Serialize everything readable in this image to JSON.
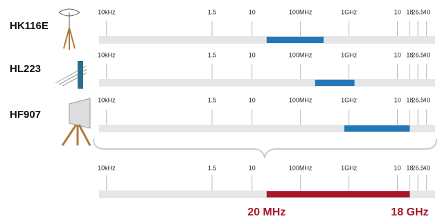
{
  "chart_data": {
    "type": "range",
    "xscale": "log",
    "xlim": [
      0.007,
      60000
    ],
    "xticks": [
      {
        "value": 0.01,
        "label": "10kHz"
      },
      {
        "value": 1.5,
        "label": "1.5"
      },
      {
        "value": 10,
        "label": "10"
      },
      {
        "value": 100,
        "label": "100MHz"
      },
      {
        "value": 1000,
        "label": "1GHz"
      },
      {
        "value": 10000,
        "label": "10"
      },
      {
        "value": 18000,
        "label": "18"
      },
      {
        "value": 26500,
        "label": "26.5"
      },
      {
        "value": 40000,
        "label": "40"
      }
    ],
    "series": [
      {
        "name": "HK116E",
        "color": "#2277b8",
        "values": [
          20,
          300
        ]
      },
      {
        "name": "HL223",
        "color": "#2277b8",
        "values": [
          200,
          1300
        ]
      },
      {
        "name": "HF907",
        "color": "#2277b8",
        "values": [
          800,
          18000
        ]
      }
    ],
    "combined": {
      "color": "#a8172a",
      "values": [
        20,
        18000
      ],
      "value_labels": [
        "20 MHz",
        "18 GHz"
      ]
    }
  }
}
